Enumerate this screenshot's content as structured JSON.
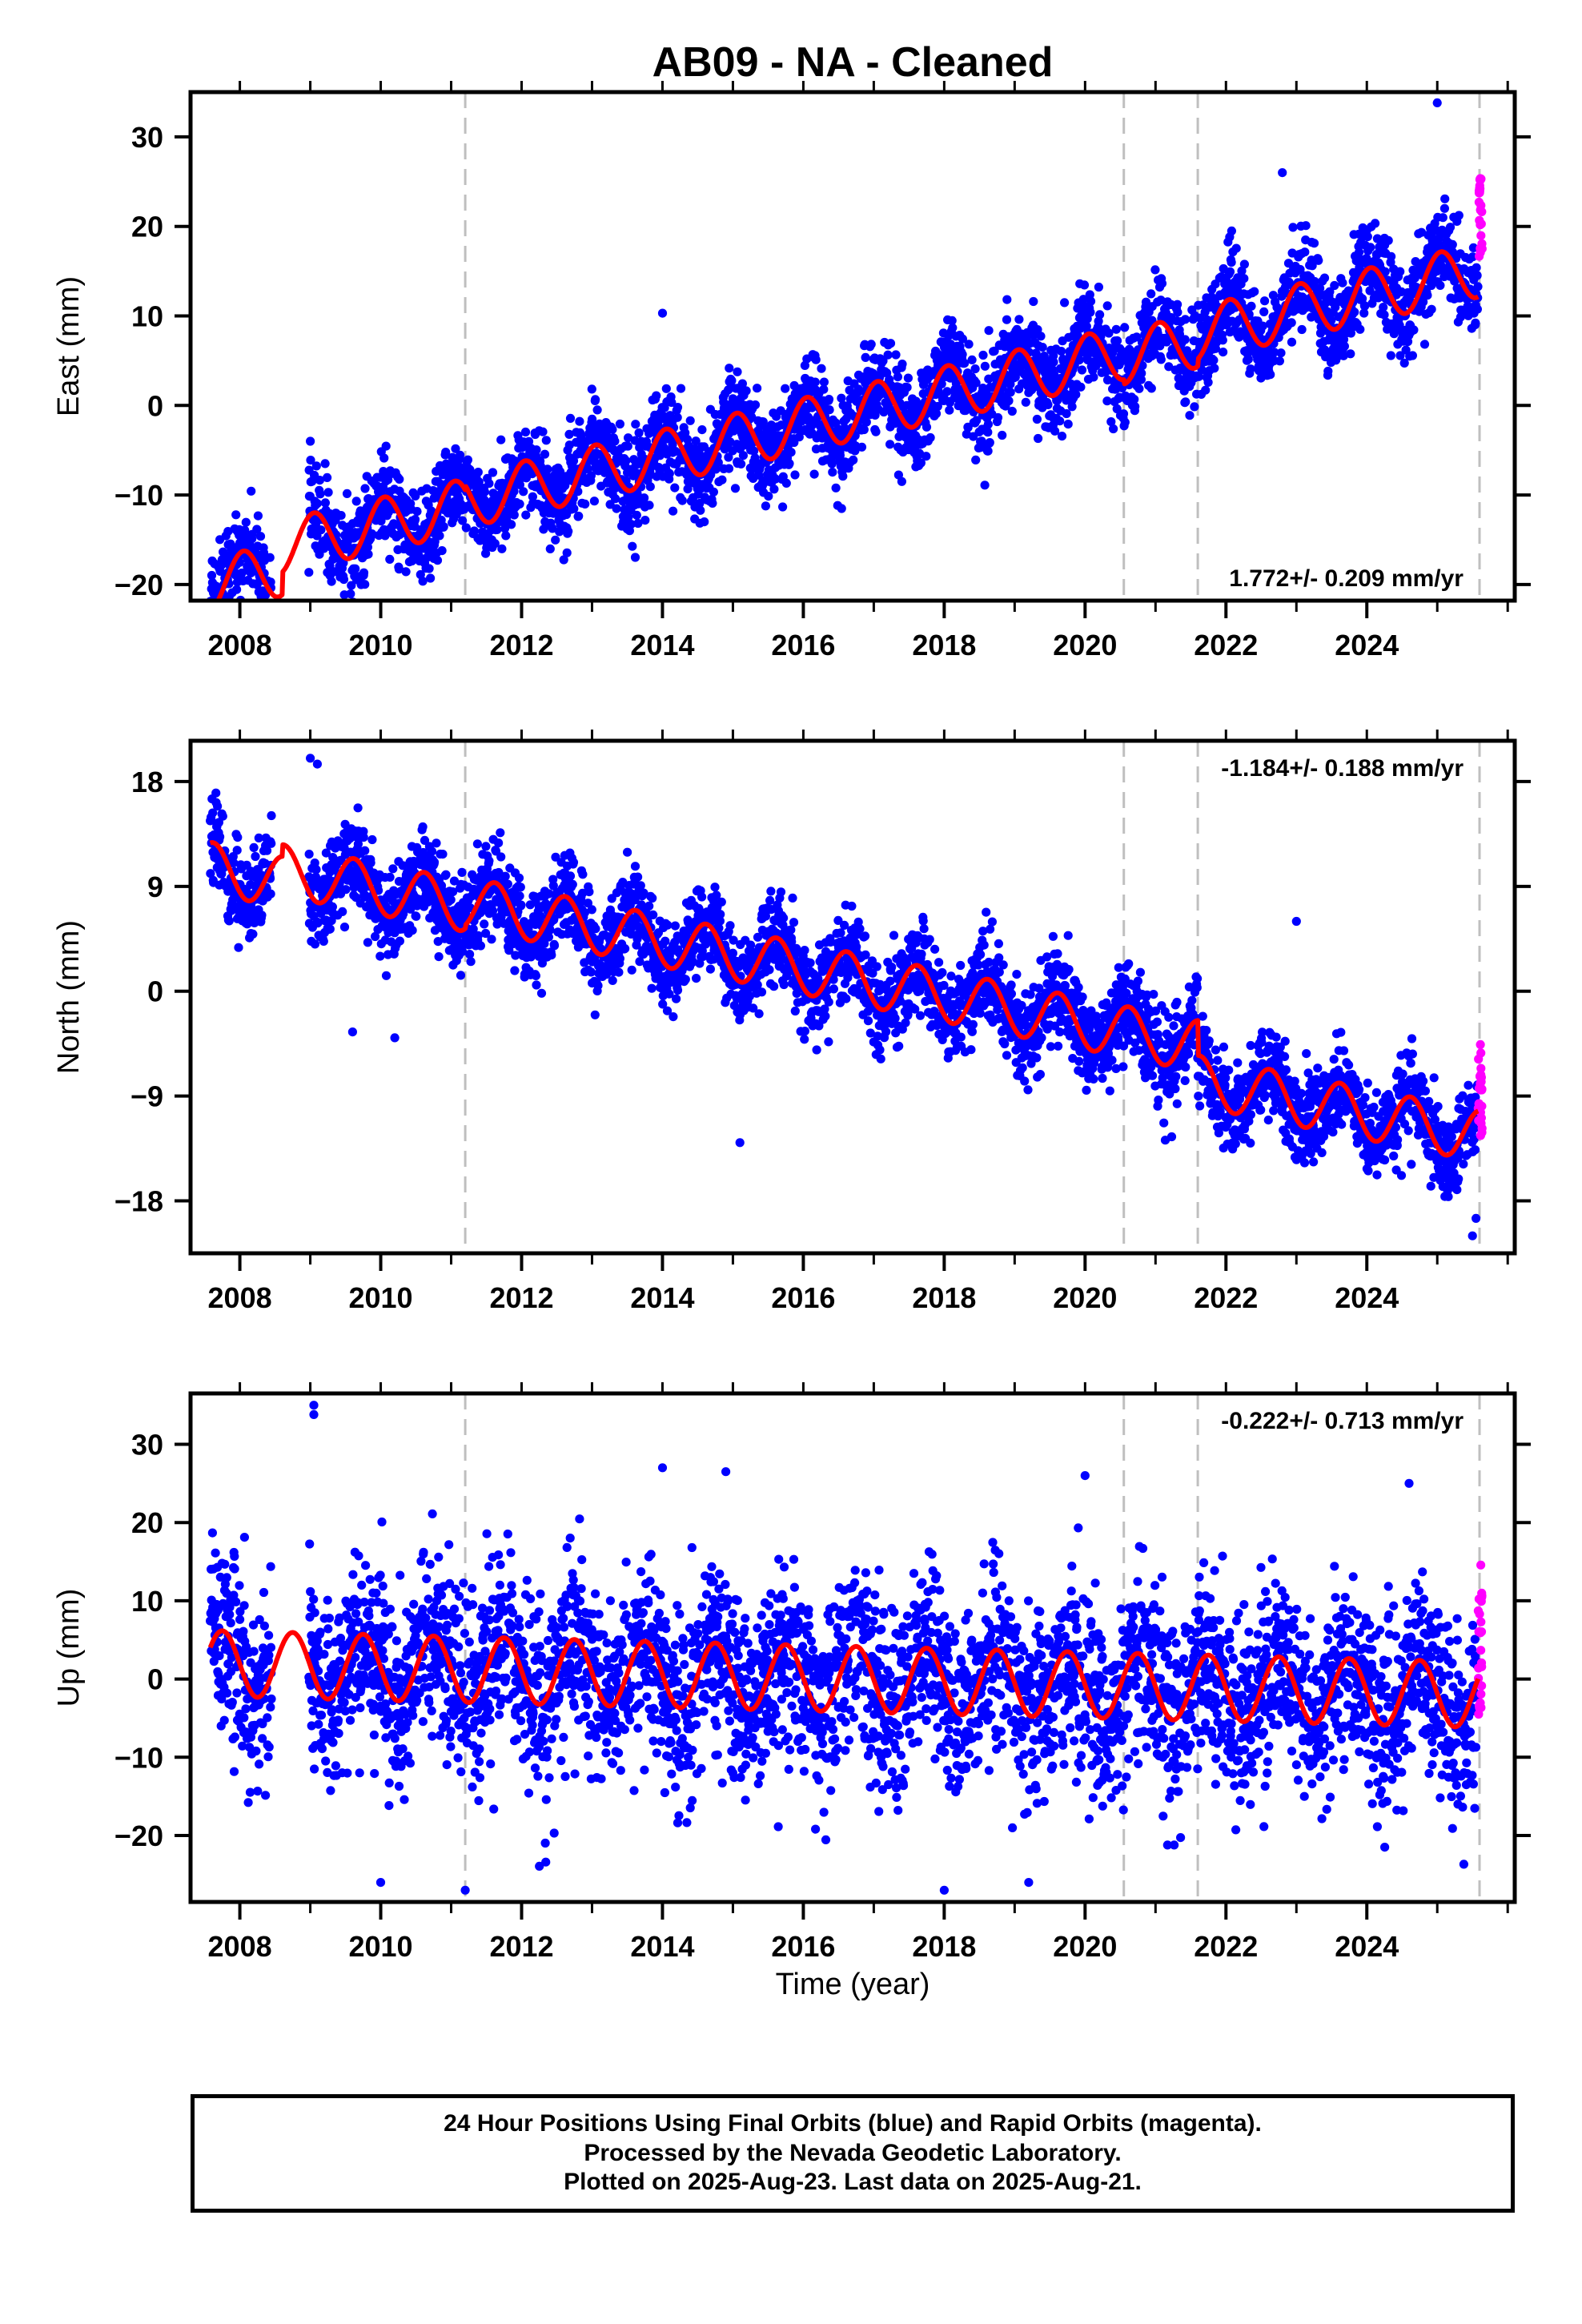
{
  "title": "AB09  - NA - Cleaned",
  "xlabel": "Time (year)",
  "colors": {
    "final_orbits": "#0000ff",
    "rapid_orbits": "#ff00ff",
    "model": "#ff0000",
    "offset_lines": "#bfbfbf",
    "frame": "#000000"
  },
  "chart_data": [
    {
      "type": "scatter",
      "name": "east",
      "ylabel": "East (mm)",
      "rate_label": "1.772+/- 0.209 mm/yr",
      "rate_position": "bottom-right",
      "xlim": [
        2007.3,
        2026.1
      ],
      "ylim": [
        -21.8,
        35.0
      ],
      "xticks": [
        2008,
        2010,
        2012,
        2014,
        2016,
        2018,
        2020,
        2022,
        2024
      ],
      "xtick_labels": [
        "2008",
        "2010",
        "2012",
        "2014",
        "2016",
        "2018",
        "2020",
        "2022",
        "2024"
      ],
      "yticks": [
        -20,
        -10,
        0,
        10,
        20,
        30
      ],
      "ytick_labels": [
        "−20",
        "−10",
        "0",
        "10",
        "20",
        "30"
      ],
      "offsets": [
        2011.2,
        2020.55,
        2021.6,
        2025.6
      ],
      "grid": false,
      "data_start": 2007.58,
      "final_end": 2025.58,
      "rapid_end": 2025.64,
      "gap": [
        2008.45,
        2008.98
      ],
      "model": {
        "intercept": -20.1,
        "ref_year": 2007.58,
        "rate": 1.772,
        "amplitude": 3.0,
        "peak_phase": 0.05,
        "steps": [
          [
            2008.6,
            2.5
          ],
          [
            2011.2,
            0.5
          ],
          [
            2020.55,
            -0.5
          ],
          [
            2021.6,
            0.8
          ]
        ]
      },
      "noise": 2.6,
      "rapid_range": [
        15.5,
        26.5
      ],
      "outliers": [
        [
          2025.0,
          33.8
        ],
        [
          2022.8,
          26.0
        ],
        [
          2009.0,
          -4.0
        ],
        [
          2014.0,
          10.3
        ]
      ]
    },
    {
      "type": "scatter",
      "name": "north",
      "ylabel": "North (mm)",
      "rate_label": "-1.184+/- 0.188 mm/yr",
      "rate_position": "top-right",
      "xlim": [
        2007.3,
        2026.1
      ],
      "ylim": [
        -22.5,
        21.5
      ],
      "xticks": [
        2008,
        2010,
        2012,
        2014,
        2016,
        2018,
        2020,
        2022,
        2024
      ],
      "xtick_labels": [
        "2008",
        "2010",
        "2012",
        "2014",
        "2016",
        "2018",
        "2020",
        "2022",
        "2024"
      ],
      "yticks": [
        -18,
        -9,
        0,
        9,
        18
      ],
      "ytick_labels": [
        "−18",
        "−9",
        "0",
        "9",
        "18"
      ],
      "offsets": [
        2011.2,
        2020.55,
        2021.6,
        2025.6
      ],
      "grid": false,
      "data_start": 2007.58,
      "final_end": 2025.58,
      "rapid_end": 2025.64,
      "gap": [
        2008.45,
        2008.98
      ],
      "model": {
        "intercept": 10.6,
        "ref_year": 2007.58,
        "rate": -1.184,
        "amplitude": 2.2,
        "peak_phase": 0.62,
        "steps": [
          [
            2008.6,
            1.0
          ],
          [
            2011.2,
            0.3
          ],
          [
            2020.55,
            0.0
          ],
          [
            2021.6,
            -3.0
          ]
        ]
      },
      "noise": 1.9,
      "rapid_range": [
        -12.5,
        -4.5
      ],
      "outliers": [
        [
          2009.0,
          20.0
        ],
        [
          2009.1,
          19.5
        ],
        [
          2015.1,
          -13.0
        ],
        [
          2023.0,
          6.0
        ],
        [
          2025.5,
          -21.0
        ],
        [
          2009.6,
          -3.5
        ],
        [
          2010.2,
          -4.0
        ],
        [
          2025.55,
          -19.5
        ]
      ]
    },
    {
      "type": "scatter",
      "name": "up",
      "ylabel": "Up (mm)",
      "rate_label": "-0.222+/- 0.713 mm/yr",
      "rate_position": "top-right",
      "xlim": [
        2007.3,
        2026.1
      ],
      "ylim": [
        -28.5,
        36.5
      ],
      "xticks": [
        2008,
        2010,
        2012,
        2014,
        2016,
        2018,
        2020,
        2022,
        2024
      ],
      "xtick_labels": [
        "2008",
        "2010",
        "2012",
        "2014",
        "2016",
        "2018",
        "2020",
        "2022",
        "2024"
      ],
      "yticks": [
        -20,
        -10,
        0,
        10,
        20,
        30
      ],
      "ytick_labels": [
        "−20",
        "−10",
        "0",
        "10",
        "20",
        "30"
      ],
      "offsets": [
        2011.2,
        2020.55,
        2021.6,
        2025.6
      ],
      "grid": false,
      "data_start": 2007.58,
      "final_end": 2025.58,
      "rapid_end": 2025.64,
      "gap": [
        2008.45,
        2008.98
      ],
      "model": {
        "intercept": 2.0,
        "ref_year": 2007.58,
        "rate": -0.222,
        "amplitude": 4.2,
        "peak_phase": 0.75,
        "steps": []
      },
      "noise": 6.0,
      "rapid_range": [
        -6.0,
        15.0
      ],
      "outliers": [
        [
          2009.05,
          35.0
        ],
        [
          2009.05,
          33.8
        ],
        [
          2014.0,
          27.0
        ],
        [
          2011.2,
          -27.0
        ],
        [
          2010.0,
          -26.0
        ],
        [
          2018.0,
          -27.0
        ],
        [
          2019.2,
          -26.0
        ],
        [
          2020.0,
          26.0
        ],
        [
          2024.6,
          25.0
        ],
        [
          2014.9,
          26.5
        ]
      ]
    }
  ],
  "footer": {
    "line1": "24 Hour Positions Using Final Orbits (blue) and Rapid Orbits (magenta).",
    "line2": "Processed by the Nevada Geodetic Laboratory.",
    "line3": "Plotted on 2025-Aug-23. Last data on 2025-Aug-21."
  }
}
